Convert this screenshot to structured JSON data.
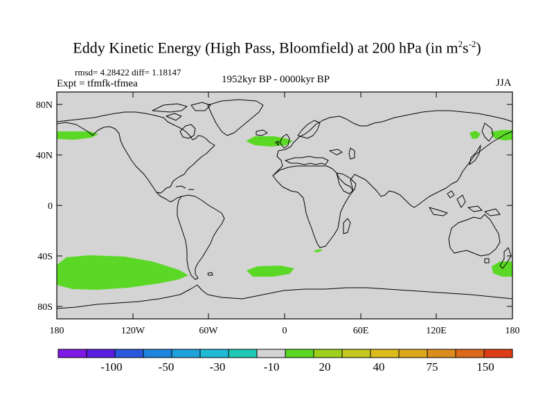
{
  "title": {
    "main": "Eddy Kinetic Energy (High Pass, Bloomfield) at 200 hPa (in m",
    "sup1": "2",
    "mid": "s",
    "sup2": "-2",
    "end": ")"
  },
  "info": {
    "rmsd": "rmsd= 4.28422 diff= 1.18147",
    "expt": "Expt = tfmfk-tfmea",
    "period": "1952kyr BP - 0000kyr BP",
    "season": "JJA"
  },
  "map": {
    "projection": "cylindrical equidistant",
    "lon_range": [
      -180,
      180
    ],
    "lat_range": [
      -90,
      90
    ],
    "background_color": "#d4d4d4",
    "land_outline_color": "#000000",
    "lat_ticks": [
      "80N",
      "40N",
      "0",
      "40S",
      "80S"
    ],
    "lon_ticks": [
      "180",
      "120W",
      "60W",
      "0",
      "60E",
      "120E",
      "180"
    ],
    "positive_anomaly_color": "#5ad825",
    "positive_anomaly_regions": [
      "North Pacific near Bering Sea (60N, 175W-155W)",
      "North Atlantic south of Greenland (50N, 30W-0)",
      "Sea of Okhotsk (58N, 145E-150E)",
      "Northwest Pacific near Kamchatka (58N, 165E-180)",
      "South Pacific (50S-60S, 180-75W)",
      "South Atlantic (50S, 30W-10E)",
      "Southwest Pacific east of New Zealand (45S-55S, 160E-180)",
      "Small patch off southern Africa (35S, 25E-35E)"
    ]
  },
  "colorbar": {
    "colors": [
      "#7e1ae4",
      "#5a1ee0",
      "#2a58dc",
      "#1e84dc",
      "#1fa2dc",
      "#20b9d6",
      "#1ec8b6",
      "#d4d4d4",
      "#5ad825",
      "#9cd01c",
      "#c4c81e",
      "#dcbc1c",
      "#dca81c",
      "#dc8c1c",
      "#dc681a",
      "#dc3c16"
    ],
    "labels": [
      "-100",
      "-50",
      "-30",
      "-10",
      "20",
      "40",
      "75",
      "150"
    ]
  }
}
